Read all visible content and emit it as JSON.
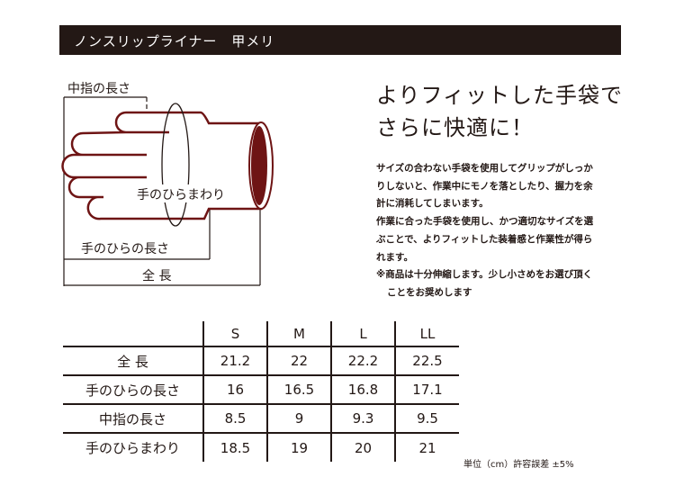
{
  "header": {
    "title": "ノンスリップライナー　甲メリ"
  },
  "diagram": {
    "middle_finger_length": "中指の長さ",
    "palm_circumference": "手のひらまわり",
    "palm_length": "手のひらの長さ",
    "total_length": "全 長",
    "glove_color": "#6e1414"
  },
  "headline": {
    "line1": "よりフィットした手袋で",
    "line2": "さらに快適に！"
  },
  "body": {
    "lines": [
      "サイズの合わない手袋を使用してグリップがしっか",
      "りしないと、作業中にモノを落としたり、握力を余",
      "計に消耗してしまいます。",
      "作業に合った手袋を使用し、かつ適切なサイズを選",
      "ぶことで、よりフィットした装着感と作業性が得ら",
      "れます。",
      "※商品は十分伸縮します。少し小さめをお選び頂く",
      "ことをお奨めします"
    ]
  },
  "table": {
    "sizes": [
      "S",
      "M",
      "L",
      "LL"
    ],
    "rows": [
      {
        "label": "全 長",
        "values": [
          "21.2",
          "22",
          "22.2",
          "22.5"
        ]
      },
      {
        "label": "手のひらの長さ",
        "values": [
          "16",
          "16.5",
          "16.8",
          "17.1"
        ]
      },
      {
        "label": "中指の長さ",
        "values": [
          "8.5",
          "9",
          "9.3",
          "9.5"
        ]
      },
      {
        "label": "手のひらまわり",
        "values": [
          "18.5",
          "19",
          "20",
          "21"
        ]
      }
    ]
  },
  "note": "単位（cm）許容誤差 ±5%"
}
